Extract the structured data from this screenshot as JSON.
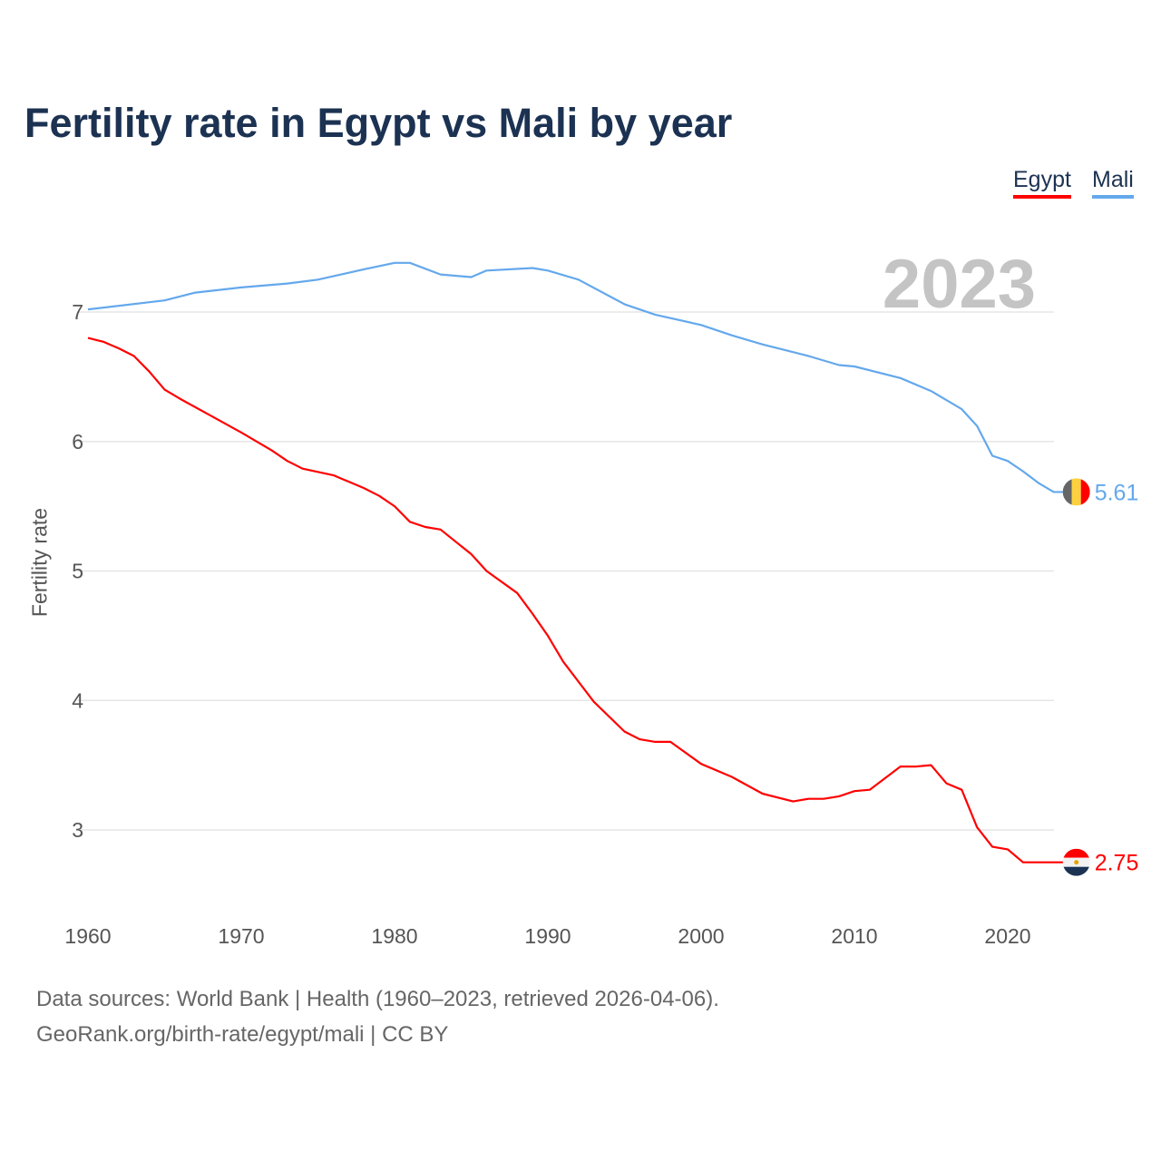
{
  "chart_data": {
    "type": "line",
    "title": "Fertility rate in Egypt vs Mali by year",
    "ylabel": "Fertility rate",
    "xlabel": "",
    "year_label": "2023",
    "xlim": [
      1960,
      2023
    ],
    "ylim": [
      2.5,
      7.5
    ],
    "xticks": [
      1960,
      1970,
      1980,
      1990,
      2000,
      2010,
      2020
    ],
    "yticks": [
      3,
      4,
      5,
      6,
      7
    ],
    "grid": true,
    "legend_position": "top-right",
    "series": [
      {
        "name": "Egypt",
        "color": "#ff0000",
        "end_label": "2.75",
        "points": [
          [
            1960,
            6.8
          ],
          [
            1961,
            6.77
          ],
          [
            1962,
            6.72
          ],
          [
            1963,
            6.66
          ],
          [
            1964,
            6.54
          ],
          [
            1965,
            6.4
          ],
          [
            1966,
            6.33
          ],
          [
            1968,
            6.2
          ],
          [
            1970,
            6.07
          ],
          [
            1972,
            5.93
          ],
          [
            1973,
            5.85
          ],
          [
            1974,
            5.79
          ],
          [
            1976,
            5.74
          ],
          [
            1978,
            5.64
          ],
          [
            1979,
            5.58
          ],
          [
            1980,
            5.5
          ],
          [
            1981,
            5.38
          ],
          [
            1982,
            5.34
          ],
          [
            1983,
            5.32
          ],
          [
            1985,
            5.13
          ],
          [
            1986,
            5.0
          ],
          [
            1988,
            4.83
          ],
          [
            1989,
            4.67
          ],
          [
            1990,
            4.5
          ],
          [
            1991,
            4.3
          ],
          [
            1993,
            3.99
          ],
          [
            1995,
            3.76
          ],
          [
            1996,
            3.7
          ],
          [
            1997,
            3.68
          ],
          [
            1998,
            3.68
          ],
          [
            2000,
            3.51
          ],
          [
            2002,
            3.41
          ],
          [
            2004,
            3.28
          ],
          [
            2006,
            3.22
          ],
          [
            2007,
            3.24
          ],
          [
            2008,
            3.24
          ],
          [
            2009,
            3.26
          ],
          [
            2010,
            3.3
          ],
          [
            2011,
            3.31
          ],
          [
            2013,
            3.49
          ],
          [
            2014,
            3.49
          ],
          [
            2015,
            3.5
          ],
          [
            2016,
            3.36
          ],
          [
            2017,
            3.31
          ],
          [
            2018,
            3.02
          ],
          [
            2019,
            2.87
          ],
          [
            2020,
            2.85
          ],
          [
            2021,
            2.75
          ],
          [
            2022,
            2.75
          ],
          [
            2023,
            2.75
          ]
        ]
      },
      {
        "name": "Mali",
        "color": "#64a8ec",
        "end_label": "5.61",
        "points": [
          [
            1960,
            7.02
          ],
          [
            1965,
            7.09
          ],
          [
            1967,
            7.15
          ],
          [
            1970,
            7.19
          ],
          [
            1973,
            7.22
          ],
          [
            1975,
            7.25
          ],
          [
            1978,
            7.33
          ],
          [
            1980,
            7.38
          ],
          [
            1981,
            7.38
          ],
          [
            1983,
            7.29
          ],
          [
            1985,
            7.27
          ],
          [
            1986,
            7.32
          ],
          [
            1989,
            7.34
          ],
          [
            1990,
            7.32
          ],
          [
            1992,
            7.25
          ],
          [
            1995,
            7.06
          ],
          [
            1997,
            6.98
          ],
          [
            2000,
            6.9
          ],
          [
            2002,
            6.82
          ],
          [
            2004,
            6.75
          ],
          [
            2007,
            6.66
          ],
          [
            2009,
            6.59
          ],
          [
            2010,
            6.58
          ],
          [
            2013,
            6.49
          ],
          [
            2015,
            6.39
          ],
          [
            2017,
            6.25
          ],
          [
            2018,
            6.12
          ],
          [
            2019,
            5.89
          ],
          [
            2020,
            5.85
          ],
          [
            2021,
            5.77
          ],
          [
            2022,
            5.68
          ],
          [
            2023,
            5.61
          ]
        ]
      }
    ]
  },
  "source_line1": "Data sources: World Bank | Health (1960–2023, retrieved 2026-04-06).",
  "source_line2": "GeoRank.org/birth-rate/egypt/mali | CC BY"
}
